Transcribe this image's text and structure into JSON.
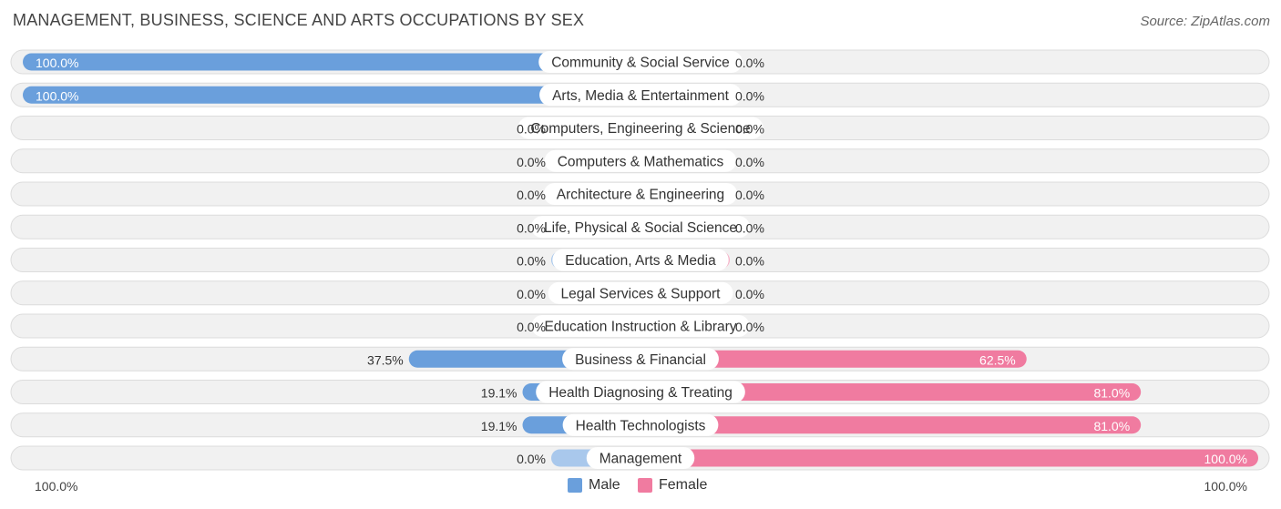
{
  "title": "MANAGEMENT, BUSINESS, SCIENCE AND ARTS OCCUPATIONS BY SEX",
  "source": "Source: ZipAtlas.com",
  "colors": {
    "male": "#6a9fdc",
    "male_light": "#a9c8ec",
    "female": "#f07ba0",
    "female_light": "#f6afc6"
  },
  "legend": {
    "male": "Male",
    "female": "Female"
  },
  "axis": {
    "left_label": "100.0%",
    "right_label": "100.0%"
  },
  "chart_data": {
    "type": "bar",
    "orientation": "horizontal-diverging",
    "categories": [
      "Community & Social Service",
      "Arts, Media & Entertainment",
      "Computers, Engineering & Science",
      "Computers & Mathematics",
      "Architecture & Engineering",
      "Life, Physical & Social Science",
      "Education, Arts & Media",
      "Legal Services & Support",
      "Education Instruction & Library",
      "Business & Financial",
      "Health Diagnosing & Treating",
      "Health Technologists",
      "Management"
    ],
    "series": [
      {
        "name": "Male",
        "values": [
          100.0,
          100.0,
          0.0,
          0.0,
          0.0,
          0.0,
          0.0,
          0.0,
          0.0,
          37.5,
          19.1,
          19.1,
          0.0
        ],
        "labels": [
          "100.0%",
          "100.0%",
          "0.0%",
          "0.0%",
          "0.0%",
          "0.0%",
          "0.0%",
          "0.0%",
          "0.0%",
          "37.5%",
          "19.1%",
          "19.1%",
          "0.0%"
        ]
      },
      {
        "name": "Female",
        "values": [
          0.0,
          0.0,
          0.0,
          0.0,
          0.0,
          0.0,
          0.0,
          0.0,
          0.0,
          62.5,
          81.0,
          81.0,
          100.0
        ],
        "labels": [
          "0.0%",
          "0.0%",
          "0.0%",
          "0.0%",
          "0.0%",
          "0.0%",
          "0.0%",
          "0.0%",
          "0.0%",
          "62.5%",
          "81.0%",
          "81.0%",
          "100.0%"
        ]
      }
    ],
    "xlim": [
      -100,
      100
    ],
    "legend_position": "bottom-center"
  }
}
